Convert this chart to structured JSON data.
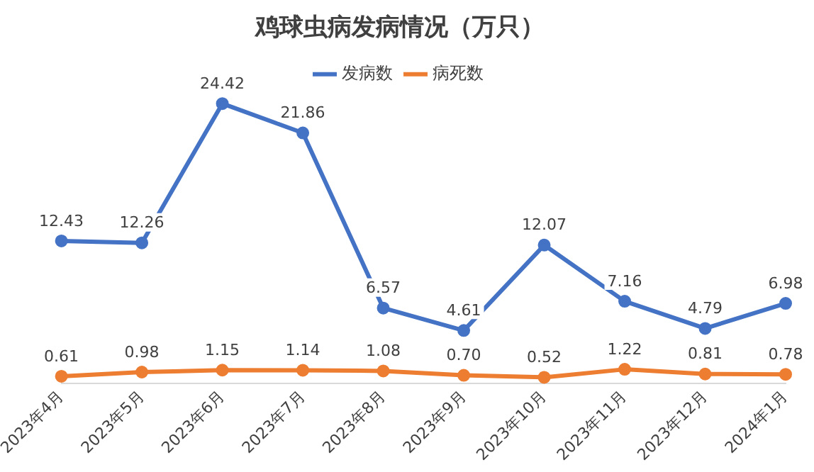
{
  "chart_data": {
    "type": "line",
    "title": "鸡球虫病发病情况（万只）",
    "categories": [
      "2023年4月",
      "2023年5月",
      "2023年6月",
      "2023年7月",
      "2023年8月",
      "2023年9月",
      "2023年10月",
      "2023年11月",
      "2023年12月",
      "2024年1月"
    ],
    "series": [
      {
        "name": "发病数",
        "color": "#4472c4",
        "values": [
          12.43,
          12.26,
          24.42,
          21.86,
          6.57,
          4.61,
          12.07,
          7.16,
          4.79,
          6.98
        ],
        "value_labels": [
          "12.43",
          "12.26",
          "24.42",
          "21.86",
          "6.57",
          "4.61",
          "12.07",
          "7.16",
          "4.79",
          "6.98"
        ]
      },
      {
        "name": "病死数",
        "color": "#ed7d31",
        "values": [
          0.61,
          0.98,
          1.15,
          1.14,
          1.08,
          0.7,
          0.52,
          1.22,
          0.81,
          0.78
        ],
        "value_labels": [
          "0.61",
          "0.98",
          "1.15",
          "1.14",
          "1.08",
          "0.70",
          "0.52",
          "1.22",
          "0.81",
          "0.78"
        ]
      }
    ],
    "legend": "top",
    "marker": "circle",
    "grid": false,
    "tick_labels": "x"
  }
}
